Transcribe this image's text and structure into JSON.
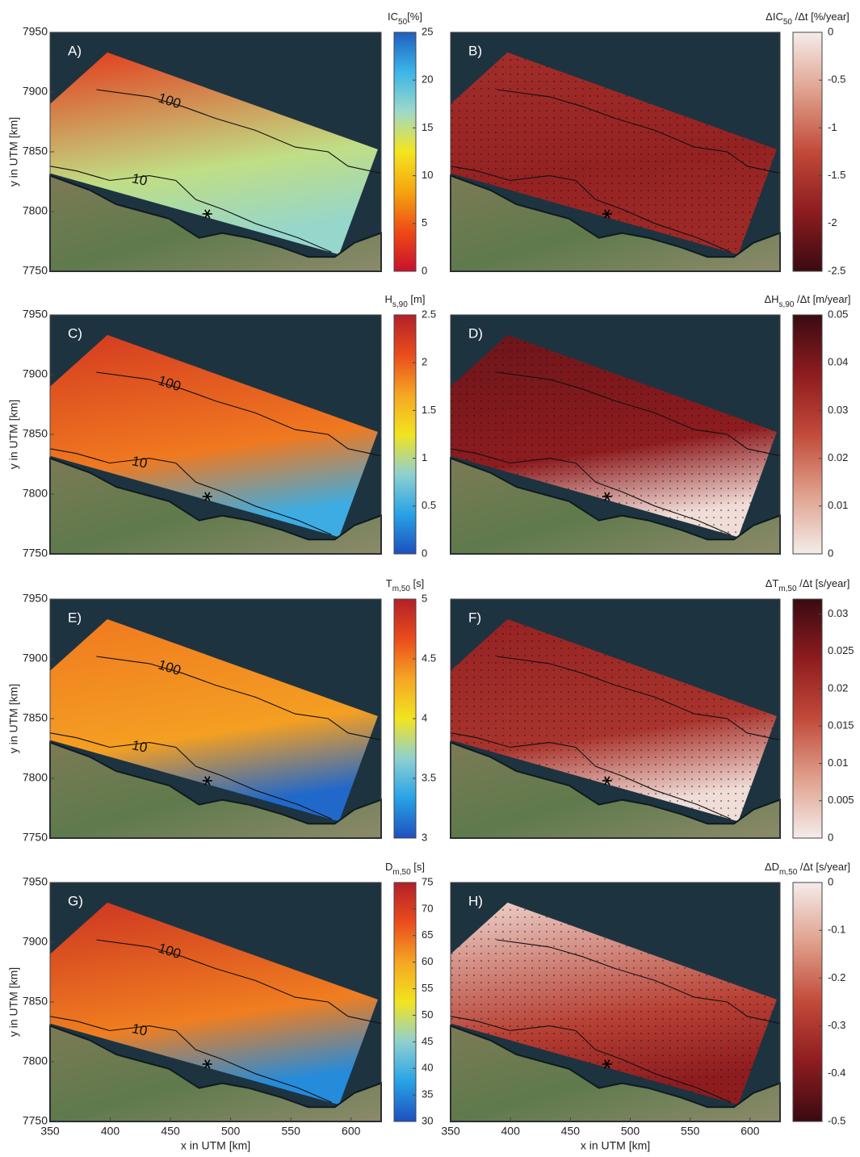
{
  "chart_data": [
    {
      "type": "map",
      "label": "A)",
      "xlim": [
        350,
        625
      ],
      "ylim": [
        7750,
        7950
      ],
      "yticks": [
        7750,
        7800,
        7850,
        7900,
        7950
      ],
      "ylabel": "y in UTM [km]",
      "contour_labels": [
        "100",
        "10"
      ],
      "colorbar": {
        "title": {
          "main": "IC",
          "sub": "50",
          "unit": "[%]"
        },
        "lim": [
          0,
          25
        ],
        "ticks": [
          0,
          5,
          10,
          15,
          20,
          25
        ],
        "colormap": [
          "#c8102e",
          "#ef4a16",
          "#f5a50f",
          "#f4e51e",
          "#9ed9c8",
          "#3cb6e8",
          "#1f5fbf"
        ]
      }
    },
    {
      "type": "map",
      "label": "B)",
      "xlim": [
        350,
        625
      ],
      "ylim": [
        7750,
        7950
      ],
      "stippled": true,
      "colorbar": {
        "title": {
          "main": "ΔIC",
          "sub": "50",
          "unit": " /Δt [%/year]"
        },
        "lim": [
          -2.5,
          0
        ],
        "ticks": [
          -2.5,
          -2,
          -1.5,
          -1,
          -0.5,
          0
        ],
        "colormap": [
          "#3a0a12",
          "#8e1c1f",
          "#c24a3a",
          "#dfa08c",
          "#f4ecea"
        ]
      }
    },
    {
      "type": "map",
      "label": "C)",
      "xlim": [
        350,
        625
      ],
      "ylim": [
        7750,
        7950
      ],
      "yticks": [
        7750,
        7800,
        7850,
        7900,
        7950
      ],
      "ylabel": "y in UTM [km]",
      "contour_labels": [
        "100",
        "10"
      ],
      "colorbar": {
        "title": {
          "main": "H",
          "sub": "s,90",
          "unit": " [m]"
        },
        "lim": [
          0,
          2.5
        ],
        "ticks": [
          0,
          0.5,
          1,
          1.5,
          2,
          2.5
        ],
        "colormap": [
          "#1f4fbf",
          "#27a3e6",
          "#8fd0d0",
          "#f2e41f",
          "#f5a623",
          "#ea4c1c",
          "#b22028"
        ]
      }
    },
    {
      "type": "map",
      "label": "D)",
      "xlim": [
        350,
        625
      ],
      "ylim": [
        7750,
        7950
      ],
      "stippled": true,
      "colorbar": {
        "title": {
          "main": "ΔH",
          "sub": "s,90",
          "unit": " /Δt [m/year]"
        },
        "lim": [
          0,
          0.05
        ],
        "ticks": [
          0,
          0.01,
          0.02,
          0.03,
          0.04,
          0.05
        ],
        "colormap": [
          "#f4ecea",
          "#dfa08c",
          "#c24a3a",
          "#8e1c1f",
          "#3a0a12"
        ]
      }
    },
    {
      "type": "map",
      "label": "E)",
      "xlim": [
        350,
        625
      ],
      "ylim": [
        7750,
        7950
      ],
      "yticks": [
        7750,
        7800,
        7850,
        7900,
        7950
      ],
      "ylabel": "y in UTM [km]",
      "contour_labels": [
        "100",
        "10"
      ],
      "colorbar": {
        "title": {
          "main": "T",
          "sub": "m,50",
          "unit": " [s]"
        },
        "lim": [
          3,
          5
        ],
        "ticks": [
          3,
          3.5,
          4,
          4.5,
          5
        ],
        "colormap": [
          "#1f4fbf",
          "#27a3e6",
          "#8fd0d0",
          "#f2e41f",
          "#f5a623",
          "#ea4c1c",
          "#b22028"
        ]
      }
    },
    {
      "type": "map",
      "label": "F)",
      "xlim": [
        350,
        625
      ],
      "ylim": [
        7750,
        7950
      ],
      "stippled": true,
      "colorbar": {
        "title": {
          "main": "ΔT",
          "sub": "m,50",
          "unit": " /Δt [s/year]"
        },
        "lim": [
          0,
          0.032
        ],
        "ticks": [
          0,
          0.005,
          0.01,
          0.015,
          0.02,
          0.025,
          0.03
        ],
        "colormap": [
          "#f4ecea",
          "#dfa08c",
          "#c24a3a",
          "#8e1c1f",
          "#3a0a12"
        ]
      }
    },
    {
      "type": "map",
      "label": "G)",
      "xlim": [
        350,
        625
      ],
      "ylim": [
        7750,
        7950
      ],
      "yticks": [
        7750,
        7800,
        7850,
        7900,
        7950
      ],
      "ylabel": "y in UTM [km]",
      "xticks": [
        350,
        400,
        450,
        500,
        550,
        600
      ],
      "xlabel": "x in UTM [km]",
      "contour_labels": [
        "100",
        "10"
      ],
      "colorbar": {
        "title": {
          "main": "D",
          "sub": "m,50",
          "unit": " [s]"
        },
        "lim": [
          30,
          75
        ],
        "ticks": [
          30,
          35,
          40,
          45,
          50,
          55,
          60,
          65,
          70,
          75
        ],
        "colormap": [
          "#1f4fbf",
          "#27a3e6",
          "#8fd0d0",
          "#f2e41f",
          "#f5a623",
          "#ea4c1c",
          "#b22028"
        ]
      }
    },
    {
      "type": "map",
      "label": "H)",
      "xlim": [
        350,
        625
      ],
      "ylim": [
        7750,
        7950
      ],
      "stippled": true,
      "xticks": [
        350,
        400,
        450,
        500,
        550,
        600
      ],
      "xlabel": "x in UTM [km]",
      "colorbar": {
        "title": {
          "main": "ΔD",
          "sub": "m,50",
          "unit": " /Δt [s/year]"
        },
        "lim": [
          -0.5,
          0
        ],
        "ticks": [
          -0.5,
          -0.4,
          -0.3,
          -0.2,
          -0.1,
          0
        ],
        "colormap": [
          "#3a0a12",
          "#8e1c1f",
          "#c24a3a",
          "#dfa08c",
          "#f4ecea"
        ]
      }
    }
  ]
}
